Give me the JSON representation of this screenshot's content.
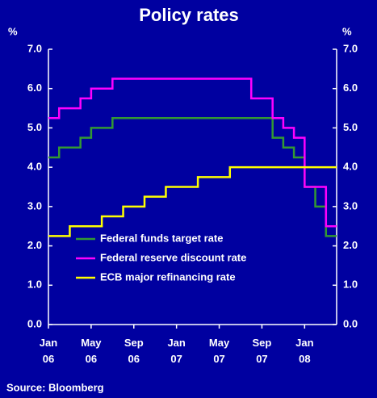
{
  "chart_data": {
    "type": "step-line",
    "title": "Policy rates",
    "ylabel": "%",
    "source": "Source: Bloomberg",
    "x": [
      "2006-01",
      "2006-02",
      "2006-03",
      "2006-04",
      "2006-05",
      "2006-06",
      "2006-07",
      "2006-08",
      "2006-09",
      "2006-10",
      "2006-11",
      "2006-12",
      "2007-01",
      "2007-02",
      "2007-03",
      "2007-04",
      "2007-05",
      "2007-06",
      "2007-07",
      "2007-08",
      "2007-09",
      "2007-10",
      "2007-11",
      "2007-12",
      "2008-01",
      "2008-02",
      "2008-03"
    ],
    "xlim": [
      "2006-01",
      "2008-04"
    ],
    "xticks": [
      {
        "value": "2006-01",
        "label": "Jan 06"
      },
      {
        "value": "2006-05",
        "label": "May 06"
      },
      {
        "value": "2006-09",
        "label": "Sep 06"
      },
      {
        "value": "2007-01",
        "label": "Jan 07"
      },
      {
        "value": "2007-05",
        "label": "May 07"
      },
      {
        "value": "2007-09",
        "label": "Sep 07"
      },
      {
        "value": "2008-01",
        "label": "Jan 08"
      }
    ],
    "ylim": [
      0,
      7
    ],
    "yticks": [
      {
        "value": 0,
        "label": "0.0"
      },
      {
        "value": 1,
        "label": "1.0"
      },
      {
        "value": 2,
        "label": "2.0"
      },
      {
        "value": 3,
        "label": "3.0"
      },
      {
        "value": 4,
        "label": "4.0"
      },
      {
        "value": 5,
        "label": "5.0"
      },
      {
        "value": 6,
        "label": "6.0"
      },
      {
        "value": 7,
        "label": "7.0"
      }
    ],
    "series": [
      {
        "name": "Federal funds target rate",
        "color": "#339933",
        "values": [
          4.25,
          4.5,
          4.5,
          4.75,
          5.0,
          5.0,
          5.25,
          5.25,
          5.25,
          5.25,
          5.25,
          5.25,
          5.25,
          5.25,
          5.25,
          5.25,
          5.25,
          5.25,
          5.25,
          5.25,
          5.25,
          4.75,
          4.5,
          4.25,
          3.5,
          3.0,
          2.25
        ]
      },
      {
        "name": "Federal reserve discount rate",
        "color": "#ff00ff",
        "values": [
          5.25,
          5.5,
          5.5,
          5.75,
          6.0,
          6.0,
          6.25,
          6.25,
          6.25,
          6.25,
          6.25,
          6.25,
          6.25,
          6.25,
          6.25,
          6.25,
          6.25,
          6.25,
          6.25,
          5.75,
          5.75,
          5.25,
          5.0,
          4.75,
          3.5,
          3.5,
          2.5
        ]
      },
      {
        "name": "ECB major refinancing rate",
        "color": "#ffff00",
        "values": [
          2.25,
          2.25,
          2.5,
          2.5,
          2.5,
          2.75,
          2.75,
          3.0,
          3.0,
          3.25,
          3.25,
          3.5,
          3.5,
          3.5,
          3.75,
          3.75,
          3.75,
          4.0,
          4.0,
          4.0,
          4.0,
          4.0,
          4.0,
          4.0,
          4.0,
          4.0,
          4.0
        ]
      }
    ]
  }
}
